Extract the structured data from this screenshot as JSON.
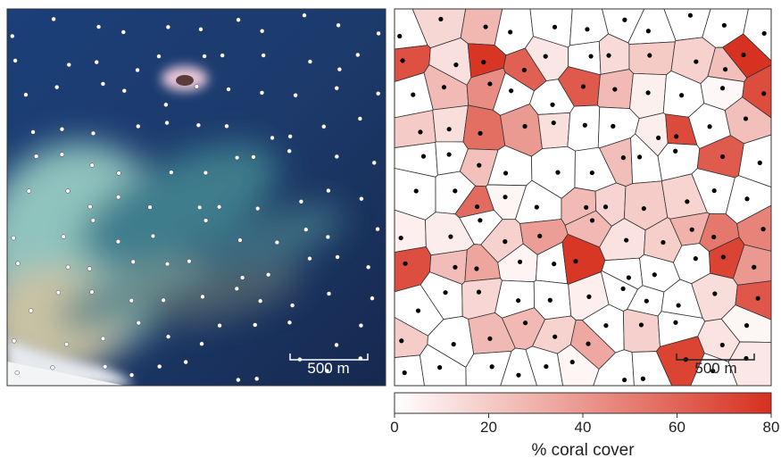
{
  "panels": {
    "left": {
      "scale_bar": "500 m"
    },
    "right": {
      "scale_bar": "500 m"
    }
  },
  "colorbar": {
    "label": "% coral cover",
    "lim": [
      0,
      80
    ],
    "ticks": [
      0,
      20,
      40,
      60,
      80
    ],
    "colors": [
      "#ffffff",
      "#d7301f"
    ]
  }
}
